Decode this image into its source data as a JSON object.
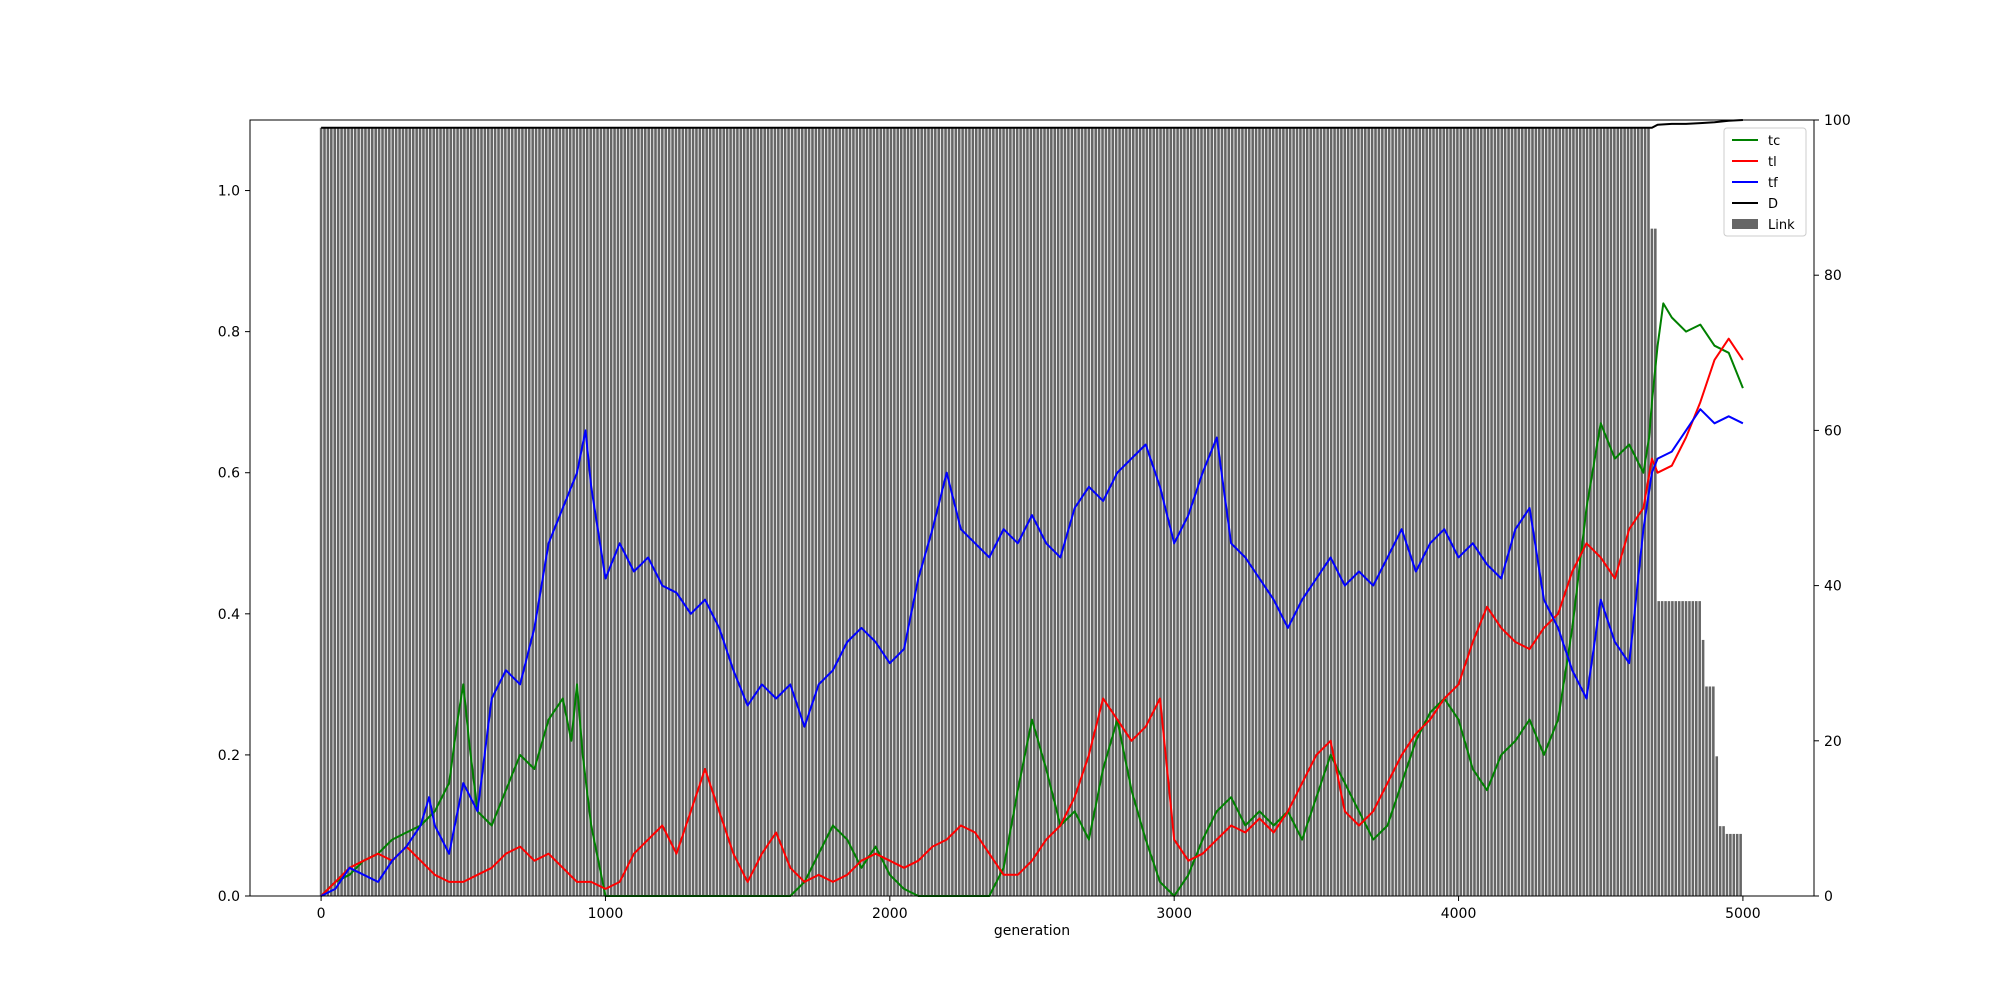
{
  "chart_data": {
    "type": "line",
    "title": "",
    "xlabel": "generation",
    "ylabel": "",
    "y2label": "",
    "xlim": [
      -250,
      5250
    ],
    "ylim": [
      0,
      1.1
    ],
    "y2lim": [
      0,
      100
    ],
    "xticks": [
      0,
      1000,
      2000,
      3000,
      4000,
      5000
    ],
    "yticks": [
      0.0,
      0.2,
      0.4,
      0.6,
      0.8,
      1.0
    ],
    "ytick_labels": [
      "0.0",
      "0.2",
      "0.4",
      "0.6",
      "0.8",
      "1.0"
    ],
    "y2ticks": [
      0,
      20,
      40,
      60,
      80,
      100
    ],
    "grid": false,
    "legend_position": "top-right",
    "legend": [
      {
        "label": "tc",
        "color": "#008000",
        "kind": "line"
      },
      {
        "label": "tl",
        "color": "#ff0000",
        "kind": "line"
      },
      {
        "label": "tf",
        "color": "#0000ff",
        "kind": "line"
      },
      {
        "label": "D",
        "color": "#000000",
        "kind": "line"
      },
      {
        "label": "Link",
        "color": "#666666",
        "kind": "patch"
      }
    ],
    "series": [
      {
        "name": "tc",
        "color": "#008000",
        "axis": "left",
        "x": [
          0,
          50,
          100,
          150,
          200,
          250,
          300,
          350,
          400,
          450,
          480,
          500,
          520,
          550,
          600,
          650,
          700,
          750,
          800,
          850,
          880,
          900,
          920,
          950,
          1000,
          1050,
          1100,
          1150,
          1200,
          1250,
          1300,
          1350,
          1400,
          1450,
          1500,
          1550,
          1600,
          1650,
          1700,
          1750,
          1800,
          1850,
          1900,
          1950,
          2000,
          2050,
          2100,
          2150,
          2200,
          2250,
          2300,
          2350,
          2400,
          2450,
          2500,
          2550,
          2600,
          2650,
          2700,
          2750,
          2800,
          2850,
          2900,
          2950,
          3000,
          3050,
          3100,
          3150,
          3200,
          3250,
          3300,
          3350,
          3400,
          3450,
          3500,
          3550,
          3600,
          3650,
          3700,
          3750,
          3800,
          3850,
          3900,
          3950,
          4000,
          4050,
          4100,
          4150,
          4200,
          4250,
          4300,
          4350,
          4400,
          4450,
          4500,
          4550,
          4600,
          4650,
          4670,
          4680,
          4700,
          4720,
          4750,
          4800,
          4850,
          4900,
          4950,
          5000
        ],
        "y": [
          0.0,
          0.02,
          0.03,
          0.05,
          0.06,
          0.08,
          0.09,
          0.1,
          0.12,
          0.16,
          0.25,
          0.3,
          0.22,
          0.12,
          0.1,
          0.15,
          0.2,
          0.18,
          0.25,
          0.28,
          0.22,
          0.3,
          0.2,
          0.1,
          0.0,
          0.0,
          0.0,
          0.0,
          0.0,
          0.0,
          0.0,
          0.0,
          0.0,
          0.0,
          0.0,
          0.0,
          0.0,
          0.0,
          0.02,
          0.06,
          0.1,
          0.08,
          0.04,
          0.07,
          0.03,
          0.01,
          0.0,
          0.0,
          0.0,
          0.0,
          0.0,
          0.0,
          0.04,
          0.15,
          0.25,
          0.18,
          0.1,
          0.12,
          0.08,
          0.18,
          0.25,
          0.15,
          0.08,
          0.02,
          0.0,
          0.03,
          0.08,
          0.12,
          0.14,
          0.1,
          0.12,
          0.1,
          0.12,
          0.08,
          0.14,
          0.2,
          0.16,
          0.12,
          0.08,
          0.1,
          0.16,
          0.22,
          0.26,
          0.28,
          0.25,
          0.18,
          0.15,
          0.2,
          0.22,
          0.25,
          0.2,
          0.25,
          0.38,
          0.55,
          0.67,
          0.62,
          0.64,
          0.6,
          0.65,
          0.7,
          0.78,
          0.84,
          0.82,
          0.8,
          0.81,
          0.78,
          0.77,
          0.72
        ]
      },
      {
        "name": "tl",
        "color": "#ff0000",
        "axis": "left",
        "x": [
          0,
          50,
          100,
          150,
          200,
          250,
          300,
          350,
          400,
          450,
          500,
          550,
          600,
          650,
          700,
          750,
          800,
          850,
          900,
          950,
          1000,
          1050,
          1100,
          1150,
          1200,
          1250,
          1300,
          1350,
          1400,
          1450,
          1500,
          1550,
          1600,
          1650,
          1700,
          1750,
          1800,
          1850,
          1900,
          1950,
          2000,
          2050,
          2100,
          2150,
          2200,
          2250,
          2300,
          2350,
          2400,
          2450,
          2500,
          2550,
          2600,
          2650,
          2700,
          2750,
          2800,
          2850,
          2900,
          2950,
          3000,
          3050,
          3100,
          3150,
          3200,
          3250,
          3300,
          3350,
          3400,
          3450,
          3500,
          3550,
          3600,
          3650,
          3700,
          3750,
          3800,
          3850,
          3900,
          3950,
          4000,
          4050,
          4100,
          4150,
          4200,
          4250,
          4300,
          4350,
          4400,
          4450,
          4500,
          4550,
          4600,
          4650,
          4680,
          4700,
          4750,
          4800,
          4850,
          4900,
          4950,
          5000
        ],
        "y": [
          0.0,
          0.02,
          0.04,
          0.05,
          0.06,
          0.05,
          0.07,
          0.05,
          0.03,
          0.02,
          0.02,
          0.03,
          0.04,
          0.06,
          0.07,
          0.05,
          0.06,
          0.04,
          0.02,
          0.02,
          0.01,
          0.02,
          0.06,
          0.08,
          0.1,
          0.06,
          0.12,
          0.18,
          0.12,
          0.06,
          0.02,
          0.06,
          0.09,
          0.04,
          0.02,
          0.03,
          0.02,
          0.03,
          0.05,
          0.06,
          0.05,
          0.04,
          0.05,
          0.07,
          0.08,
          0.1,
          0.09,
          0.06,
          0.03,
          0.03,
          0.05,
          0.08,
          0.1,
          0.14,
          0.2,
          0.28,
          0.25,
          0.22,
          0.24,
          0.28,
          0.08,
          0.05,
          0.06,
          0.08,
          0.1,
          0.09,
          0.11,
          0.09,
          0.12,
          0.16,
          0.2,
          0.22,
          0.12,
          0.1,
          0.12,
          0.16,
          0.2,
          0.23,
          0.25,
          0.28,
          0.3,
          0.36,
          0.41,
          0.38,
          0.36,
          0.35,
          0.38,
          0.4,
          0.46,
          0.5,
          0.48,
          0.45,
          0.52,
          0.55,
          0.62,
          0.6,
          0.61,
          0.65,
          0.7,
          0.76,
          0.79,
          0.76
        ]
      },
      {
        "name": "tf",
        "color": "#0000ff",
        "axis": "left",
        "x": [
          0,
          50,
          100,
          150,
          200,
          250,
          300,
          350,
          380,
          400,
          450,
          500,
          550,
          600,
          650,
          700,
          750,
          800,
          850,
          900,
          930,
          950,
          1000,
          1050,
          1100,
          1150,
          1200,
          1250,
          1300,
          1350,
          1400,
          1450,
          1500,
          1550,
          1600,
          1650,
          1700,
          1750,
          1800,
          1850,
          1900,
          1950,
          2000,
          2050,
          2100,
          2150,
          2200,
          2250,
          2300,
          2350,
          2400,
          2450,
          2500,
          2550,
          2600,
          2650,
          2700,
          2750,
          2800,
          2850,
          2900,
          2950,
          3000,
          3050,
          3100,
          3150,
          3200,
          3250,
          3300,
          3350,
          3400,
          3450,
          3500,
          3550,
          3600,
          3650,
          3700,
          3750,
          3800,
          3850,
          3900,
          3950,
          4000,
          4050,
          4100,
          4150,
          4200,
          4250,
          4300,
          4350,
          4400,
          4450,
          4500,
          4550,
          4600,
          4650,
          4680,
          4700,
          4750,
          4800,
          4850,
          4900,
          4950,
          5000
        ],
        "y": [
          0.0,
          0.01,
          0.04,
          0.03,
          0.02,
          0.05,
          0.07,
          0.1,
          0.14,
          0.1,
          0.06,
          0.16,
          0.12,
          0.28,
          0.32,
          0.3,
          0.38,
          0.5,
          0.55,
          0.6,
          0.66,
          0.58,
          0.45,
          0.5,
          0.46,
          0.48,
          0.44,
          0.43,
          0.4,
          0.42,
          0.38,
          0.32,
          0.27,
          0.3,
          0.28,
          0.3,
          0.24,
          0.3,
          0.32,
          0.36,
          0.38,
          0.36,
          0.33,
          0.35,
          0.45,
          0.52,
          0.6,
          0.52,
          0.5,
          0.48,
          0.52,
          0.5,
          0.54,
          0.5,
          0.48,
          0.55,
          0.58,
          0.56,
          0.6,
          0.62,
          0.64,
          0.58,
          0.5,
          0.54,
          0.6,
          0.65,
          0.5,
          0.48,
          0.45,
          0.42,
          0.38,
          0.42,
          0.45,
          0.48,
          0.44,
          0.46,
          0.44,
          0.48,
          0.52,
          0.46,
          0.5,
          0.52,
          0.48,
          0.5,
          0.47,
          0.45,
          0.52,
          0.55,
          0.42,
          0.38,
          0.32,
          0.28,
          0.42,
          0.36,
          0.33,
          0.52,
          0.6,
          0.62,
          0.63,
          0.66,
          0.69,
          0.67,
          0.68,
          0.67
        ]
      },
      {
        "name": "D",
        "color": "#000000",
        "axis": "right",
        "x": [
          0,
          4650,
          4680,
          4700,
          4750,
          4800,
          4850,
          4900,
          4950,
          5000
        ],
        "y": [
          99.0,
          99.0,
          99.0,
          99.4,
          99.5,
          99.5,
          99.6,
          99.7,
          99.9,
          100.0
        ]
      }
    ],
    "bars": {
      "name": "Link",
      "color": "#666666",
      "axis": "right",
      "x_start": 0,
      "x_end": 5000,
      "step": 12,
      "bar_width": 9,
      "segments": [
        {
          "from": 0,
          "to": 4680,
          "value": 99
        },
        {
          "from": 4680,
          "to": 4700,
          "value": 86
        },
        {
          "from": 4700,
          "to": 4850,
          "value": 38
        },
        {
          "from": 4850,
          "to": 4870,
          "value": 33
        },
        {
          "from": 4870,
          "to": 4900,
          "value": 27
        },
        {
          "from": 4900,
          "to": 4920,
          "value": 18
        },
        {
          "from": 4920,
          "to": 4940,
          "value": 9
        },
        {
          "from": 4940,
          "to": 5000,
          "value": 8
        }
      ]
    }
  }
}
